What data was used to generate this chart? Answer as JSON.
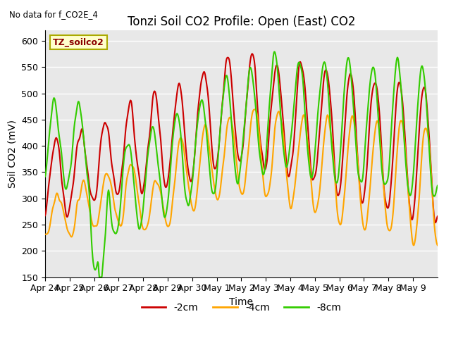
{
  "title": "Tonzi Soil CO2 Profile: Open (East) CO2",
  "top_left_text": "No data for f_CO2E_4",
  "box_label": "TZ_soilco2",
  "ylabel": "Soil CO2 (mV)",
  "xlabel": "Time",
  "ylim": [
    150,
    620
  ],
  "yticks": [
    150,
    200,
    250,
    300,
    350,
    400,
    450,
    500,
    550,
    600
  ],
  "x_labels": [
    "Apr 24",
    "Apr 25",
    "Apr 26",
    "Apr 27",
    "Apr 28",
    "Apr 29",
    "Apr 30",
    "May 1",
    "May 2",
    "May 3",
    "May 4",
    "May 5",
    "May 6",
    "May 7",
    "May 8",
    "May 9"
  ],
  "colors": {
    "2cm": "#cc0000",
    "4cm": "#ffa500",
    "8cm": "#33cc00"
  },
  "line_widths": {
    "2cm": 1.5,
    "4cm": 1.5,
    "8cm": 1.5
  },
  "legend_labels": [
    "-2cm",
    "-4cm",
    "-8cm"
  ],
  "background_color": "#ffffff",
  "plot_bg_color": "#e8e8e8",
  "grid_color": "#ffffff",
  "title_fontsize": 12,
  "axis_fontsize": 10,
  "tick_fontsize": 9
}
